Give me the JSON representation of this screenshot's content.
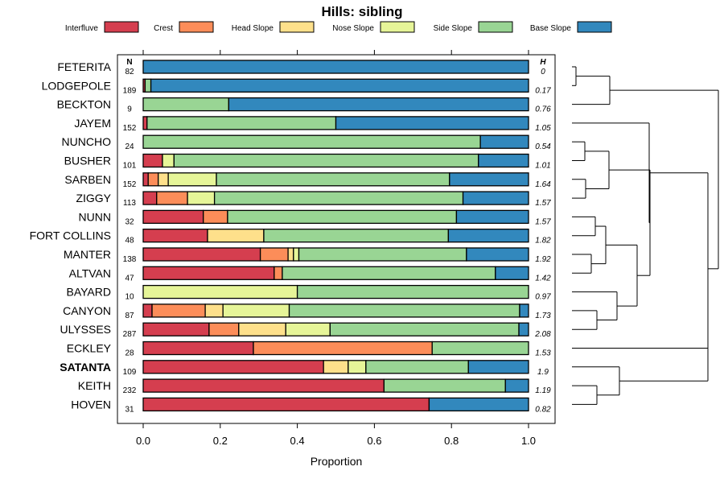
{
  "chart_data": {
    "type": "bar",
    "orientation": "horizontal",
    "stacked": true,
    "title": "Hills: sibling",
    "xlabel": "Proportion",
    "xlim": [
      0,
      1
    ],
    "x_ticks": [
      "0.0",
      "0.2",
      "0.4",
      "0.6",
      "0.8",
      "1.0"
    ],
    "n_header": "N",
    "h_header": "H",
    "legend": [
      {
        "name": "Interfluve",
        "color": "#d53e4f"
      },
      {
        "name": "Crest",
        "color": "#fc8d59"
      },
      {
        "name": "Head Slope",
        "color": "#fee08b"
      },
      {
        "name": "Nose Slope",
        "color": "#e6f598"
      },
      {
        "name": "Side Slope",
        "color": "#99d594"
      },
      {
        "name": "Base Slope",
        "color": "#3288bd"
      }
    ],
    "highlight": "SATANTA",
    "series_order": [
      "Interfluve",
      "Crest",
      "Head Slope",
      "Nose Slope",
      "Side Slope",
      "Base Slope"
    ],
    "rows": [
      {
        "label": "FETERITA",
        "n": "82",
        "h": "0",
        "values": [
          0,
          0,
          0,
          0,
          0,
          1.0
        ]
      },
      {
        "label": "LODGEPOLE",
        "n": "189",
        "h": "0.17",
        "values": [
          0.005,
          0,
          0,
          0,
          0.015,
          0.98
        ]
      },
      {
        "label": "BECKTON",
        "n": "9",
        "h": "0.76",
        "values": [
          0,
          0,
          0,
          0,
          0.222,
          0.778
        ]
      },
      {
        "label": "JAYEM",
        "n": "152",
        "h": "1.05",
        "values": [
          0.01,
          0,
          0,
          0,
          0.49,
          0.5
        ]
      },
      {
        "label": "NUNCHO",
        "n": "24",
        "h": "0.54",
        "values": [
          0,
          0,
          0,
          0,
          0.875,
          0.125
        ]
      },
      {
        "label": "BUSHER",
        "n": "101",
        "h": "1.01",
        "values": [
          0.05,
          0,
          0,
          0.03,
          0.79,
          0.13
        ]
      },
      {
        "label": "SARBEN",
        "n": "152",
        "h": "1.64",
        "values": [
          0.013,
          0.026,
          0.026,
          0.125,
          0.605,
          0.205
        ]
      },
      {
        "label": "ZIGGY",
        "n": "113",
        "h": "1.57",
        "values": [
          0.035,
          0.08,
          0.0,
          0.07,
          0.645,
          0.17
        ]
      },
      {
        "label": "NUNN",
        "n": "32",
        "h": "1.57",
        "values": [
          0.156,
          0.063,
          0,
          0,
          0.594,
          0.187
        ]
      },
      {
        "label": "FORT COLLINS",
        "n": "48",
        "h": "1.82",
        "values": [
          0.167,
          0,
          0.146,
          0,
          0.479,
          0.208
        ]
      },
      {
        "label": "MANTER",
        "n": "138",
        "h": "1.92",
        "values": [
          0.304,
          0.072,
          0.014,
          0.014,
          0.435,
          0.161
        ]
      },
      {
        "label": "ALTVAN",
        "n": "47",
        "h": "1.42",
        "values": [
          0.34,
          0.021,
          0,
          0,
          0.553,
          0.086
        ]
      },
      {
        "label": "BAYARD",
        "n": "10",
        "h": "0.97",
        "values": [
          0,
          0,
          0,
          0.4,
          0.6,
          0
        ]
      },
      {
        "label": "CANYON",
        "n": "87",
        "h": "1.73",
        "values": [
          0.023,
          0.138,
          0.046,
          0.172,
          0.598,
          0.023
        ]
      },
      {
        "label": "ULYSSES",
        "n": "287",
        "h": "2.08",
        "values": [
          0.171,
          0.077,
          0.122,
          0.115,
          0.49,
          0.025
        ]
      },
      {
        "label": "ECKLEY",
        "n": "28",
        "h": "1.53",
        "values": [
          0.286,
          0.464,
          0,
          0,
          0.25,
          0
        ]
      },
      {
        "label": "SATANTA",
        "n": "109",
        "h": "1.9",
        "values": [
          0.468,
          0,
          0.064,
          0.046,
          0.266,
          0.156
        ]
      },
      {
        "label": "KEITH",
        "n": "232",
        "h": "1.19",
        "values": [
          0.625,
          0,
          0,
          0,
          0.315,
          0.06
        ]
      },
      {
        "label": "HOVEN",
        "n": "31",
        "h": "0.82",
        "values": [
          0.742,
          0,
          0,
          0,
          0,
          0.258
        ]
      }
    ]
  }
}
